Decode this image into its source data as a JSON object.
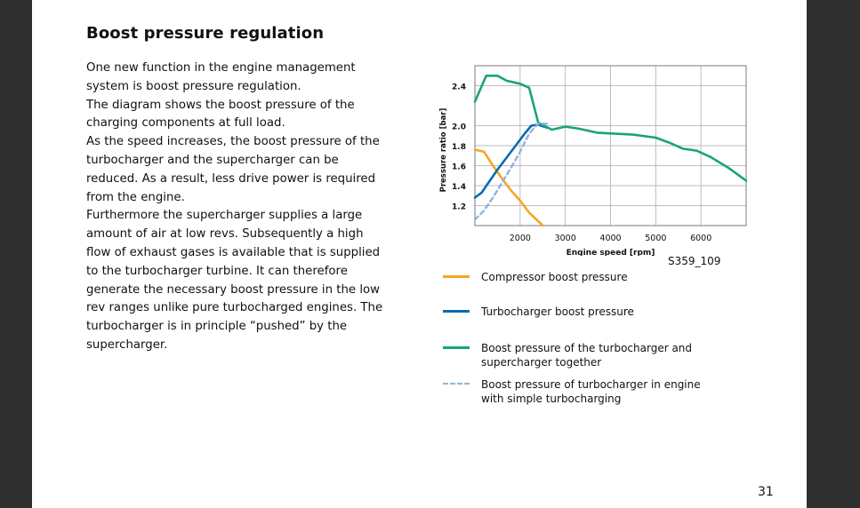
{
  "title": "Boost pressure regulation",
  "paragraphs": [
    "One new function in the engine management system is boost pressure regulation.",
    "The diagram shows the boost pressure of the charging components at full load.",
    "As the speed increases, the boost pressure of the turbocharger and the supercharger can be reduced. As a result, less drive power is required from the engine.",
    "Furthermore the supercharger supplies a large amount of air at low revs. Subsequently a high flow of exhaust gases is available that is supplied to the turbocharger turbine. It can therefore generate the necessary boost pressure in the low rev ranges unlike pure turbocharged engines. The turbocharger is in principle “pushed” by the supercharger."
  ],
  "figure_code": "S359_109",
  "page_number": "31",
  "chart_data": {
    "type": "line",
    "xlabel": "Engine speed [rpm]",
    "ylabel": "Pressure ratio [bar]",
    "xlim": [
      1000,
      7000
    ],
    "ylim": [
      1.0,
      2.6
    ],
    "x_ticks": [
      "2000",
      "3000",
      "4000",
      "5000",
      "6000"
    ],
    "y_ticks": [
      "2.4",
      "2.0",
      "1.8",
      "1.6",
      "1.4",
      "1.2"
    ],
    "grid": true,
    "series": [
      {
        "name": "Compressor boost pressure",
        "color": "#f5a623",
        "dash": false,
        "points": [
          [
            1000,
            1.76
          ],
          [
            1200,
            1.74
          ],
          [
            1400,
            1.6
          ],
          [
            1600,
            1.47
          ],
          [
            1800,
            1.35
          ],
          [
            2000,
            1.25
          ],
          [
            2200,
            1.13
          ],
          [
            2500,
            1.0
          ]
        ]
      },
      {
        "name": "Turbocharger boost pressure",
        "color": "#0a6ab0",
        "dash": false,
        "points": [
          [
            1000,
            1.28
          ],
          [
            1150,
            1.33
          ],
          [
            1300,
            1.43
          ],
          [
            1500,
            1.56
          ],
          [
            1700,
            1.68
          ],
          [
            1900,
            1.8
          ],
          [
            2100,
            1.92
          ],
          [
            2250,
            2.0
          ],
          [
            2400,
            2.01
          ],
          [
            2600,
            1.98
          ]
        ]
      },
      {
        "name": "Boost pressure of the turbocharger and supercharger together",
        "color": "#1aa37a",
        "dash": false,
        "points": [
          [
            1000,
            2.24
          ],
          [
            1250,
            2.5
          ],
          [
            1500,
            2.5
          ],
          [
            1700,
            2.45
          ],
          [
            2000,
            2.42
          ],
          [
            2200,
            2.38
          ],
          [
            2400,
            2.03
          ],
          [
            2700,
            1.96
          ],
          [
            3000,
            1.99
          ],
          [
            3300,
            1.97
          ],
          [
            3700,
            1.93
          ],
          [
            4500,
            1.91
          ],
          [
            5000,
            1.88
          ],
          [
            5300,
            1.83
          ],
          [
            5600,
            1.77
          ],
          [
            5900,
            1.75
          ],
          [
            6200,
            1.69
          ],
          [
            6600,
            1.58
          ],
          [
            7000,
            1.45
          ]
        ]
      },
      {
        "name": "Boost pressure of turbocharger in engine with simple turbocharging",
        "color": "#8fb3dc",
        "dash": true,
        "points": [
          [
            1000,
            1.06
          ],
          [
            1200,
            1.15
          ],
          [
            1400,
            1.28
          ],
          [
            1600,
            1.43
          ],
          [
            1800,
            1.58
          ],
          [
            2000,
            1.74
          ],
          [
            2200,
            1.92
          ],
          [
            2400,
            2.02
          ],
          [
            2600,
            2.02
          ]
        ]
      }
    ]
  }
}
